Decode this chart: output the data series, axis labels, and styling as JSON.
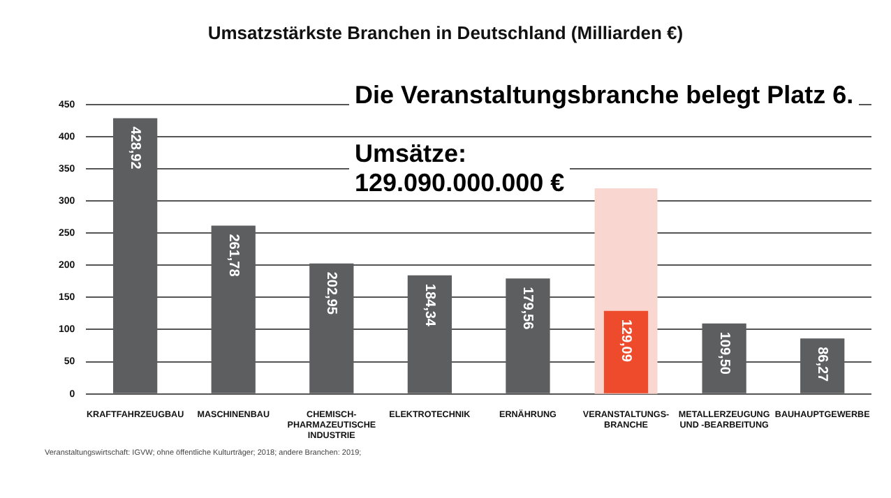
{
  "chart_data": {
    "type": "bar",
    "title": "Umsatzstärkste Branchen in Deutschland (Milliarden €)",
    "categories": [
      "KRAFTFAHRZEUGBAU",
      "MASCHINENBAU",
      "CHEMISCH-\nPHARMAZEUTISCHE\nINDUSTRIE",
      "ELEKTROTECHNIK",
      "ERNÄHRUNG",
      "VERANSTALTUNGS-\nBRANCHE",
      "METALLERZEUGUNG\nUND -BEARBEITUNG",
      "BAUHAUPTGEWERBE"
    ],
    "values": [
      428.92,
      261.78,
      202.95,
      184.34,
      179.56,
      129.09,
      109.5,
      86.27
    ],
    "value_labels": [
      "428,92",
      "261,78",
      "202,95",
      "184,34",
      "179,56",
      "129,09",
      "109,50",
      "86,27"
    ],
    "colors": [
      "#5d5e60",
      "#5d5e60",
      "#5d5e60",
      "#5d5e60",
      "#5d5e60",
      "#ee4a2c",
      "#5d5e60",
      "#5d5e60"
    ],
    "ylim": [
      0,
      450
    ],
    "yticks": [
      0,
      50,
      100,
      150,
      200,
      250,
      300,
      350,
      400,
      450
    ],
    "grid": "y",
    "legend": false,
    "bands": [
      {
        "axis": "x",
        "from": "VERANSTALTUNGS-\nBRANCHE",
        "to": "VERANSTALTUNGS-\nBRANCHE",
        "color": "#fad6d1"
      }
    ],
    "annotations": [
      "Die Veranstaltungsbranche belegt Platz 6.",
      "Umsätze:\n129.090.000.000 €",
      "Veranstaltungswirtschaft: IGVW; ohne öffentliche Kulturträger; 2018; andere Branchen: 2019;"
    ]
  }
}
